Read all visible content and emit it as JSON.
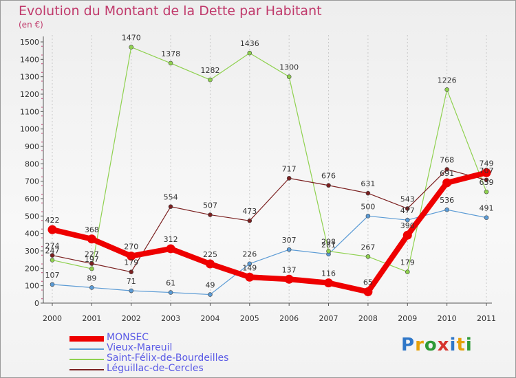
{
  "title": "Evolution du Montant de la Dette par Habitant",
  "unit": "(en €)",
  "logo": {
    "parts": [
      "P",
      "r",
      "o",
      "x",
      "i",
      "t",
      "i"
    ],
    "colors": [
      "#2f77c8",
      "#e6a10a",
      "#2f9a37",
      "#d6342e",
      "#2f77c8",
      "#e6a10a",
      "#2f9a37"
    ]
  },
  "chart_data": {
    "type": "line",
    "x": [
      "2000",
      "2001",
      "2002",
      "2003",
      "2004",
      "2005",
      "2006",
      "2007",
      "2008",
      "2009",
      "2010",
      "2011"
    ],
    "ylim": [
      0,
      1500
    ],
    "yticks": [
      0,
      100,
      200,
      300,
      400,
      500,
      600,
      700,
      800,
      900,
      1000,
      1100,
      1200,
      1300,
      1400,
      1500
    ],
    "grid": "vertical-dashed",
    "legend": "bottom-left",
    "series": [
      {
        "name": "MONSEC",
        "color": "#ee0000",
        "values": [
          422,
          368,
          270,
          312,
          225,
          149,
          137,
          116,
          65,
          390,
          691,
          749
        ]
      },
      {
        "name": "Vieux-Mareuil",
        "color": "#5b9bd5",
        "values": [
          107,
          89,
          71,
          61,
          49,
          226,
          307,
          281,
          500,
          477,
          536,
          491
        ]
      },
      {
        "name": "Saint-Félix-de-Bourdeilles",
        "color": "#8fd14f",
        "values": [
          247,
          197,
          1470,
          1378,
          1282,
          1436,
          1300,
          298,
          267,
          179,
          1226,
          639
        ]
      },
      {
        "name": "Léguillac-de-Cercles",
        "color": "#7b2020",
        "values": [
          274,
          227,
          179,
          554,
          507,
          473,
          717,
          676,
          631,
          543,
          768,
          707
        ]
      }
    ]
  }
}
